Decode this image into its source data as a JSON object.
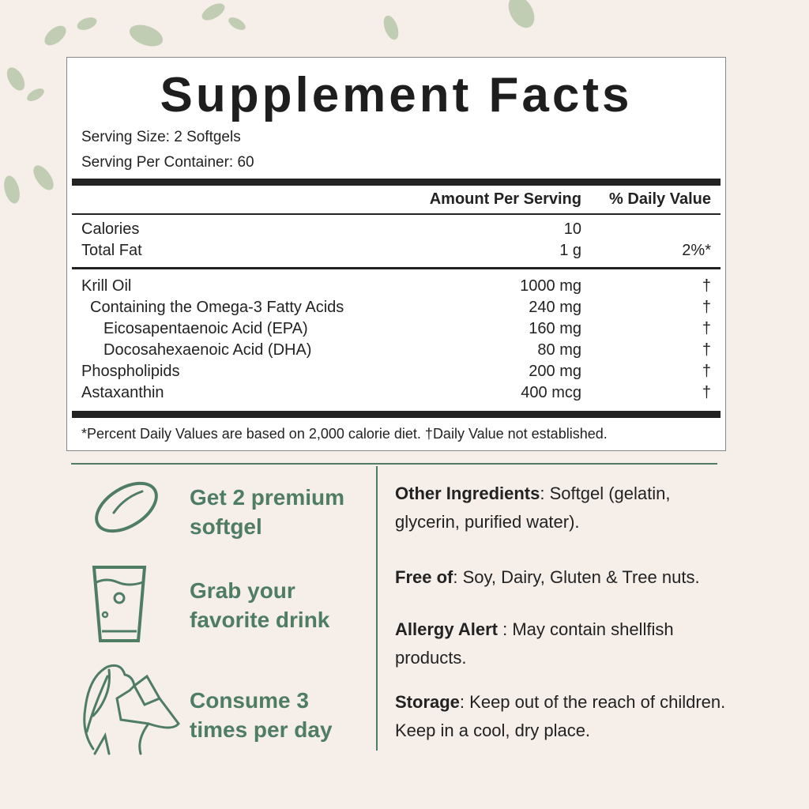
{
  "colors": {
    "accent": "#4e7d63",
    "background": "#f6eee9"
  },
  "facts": {
    "title": "Supplement Facts",
    "serving_size": "Serving Size: 2 Softgels",
    "servings_per_container": "Serving Per Container: 60",
    "header": {
      "amount": "Amount Per Serving",
      "daily": "% Daily Value"
    },
    "basic": [
      {
        "name": "Calories",
        "amount": "10",
        "daily": ""
      },
      {
        "name": "Total Fat",
        "amount": "1 g",
        "daily": "2%*"
      }
    ],
    "nutrients": [
      {
        "name": "Krill Oil",
        "amount": "1000 mg",
        "daily": "†",
        "indent": 0
      },
      {
        "name": "Containing the Omega-3 Fatty Acids",
        "amount": "240 mg",
        "daily": "†",
        "indent": 1
      },
      {
        "name": "Eicosapentaenoic Acid (EPA)",
        "amount": "160 mg",
        "daily": "†",
        "indent": 2
      },
      {
        "name": "Docosahexaenoic Acid (DHA)",
        "amount": "80 mg",
        "daily": "†",
        "indent": 2
      },
      {
        "name": "Phospholipids",
        "amount": "200 mg",
        "daily": "†",
        "indent": 0
      },
      {
        "name": "Astaxanthin",
        "amount": "400 mcg",
        "daily": "†",
        "indent": 0
      }
    ],
    "footnote": "*Percent Daily Values are based on 2,000 calorie diet. †Daily Value not established."
  },
  "steps": [
    {
      "icon": "softgel-icon",
      "line1": "Get 2 premium",
      "line2": "softgel"
    },
    {
      "icon": "glass-icon",
      "line1": "Grab your",
      "line2": "favorite drink"
    },
    {
      "icon": "woman-drinking-icon",
      "line1": "Consume 3",
      "line2": "times per day"
    }
  ],
  "info": [
    {
      "label": "Other Ingredients",
      "sep": ": ",
      "text": "Softgel (gelatin, glycerin, purified water)."
    },
    {
      "label": "Free of",
      "sep": ": ",
      "text": "Soy, Dairy, Gluten & Tree nuts."
    },
    {
      "label": "Allergy Alert",
      "sep": " : ",
      "text": "May contain shellfish products."
    },
    {
      "label": "Storage",
      "sep": ": ",
      "text": "Keep out of the reach of children. Keep in a cool, dry place."
    }
  ]
}
